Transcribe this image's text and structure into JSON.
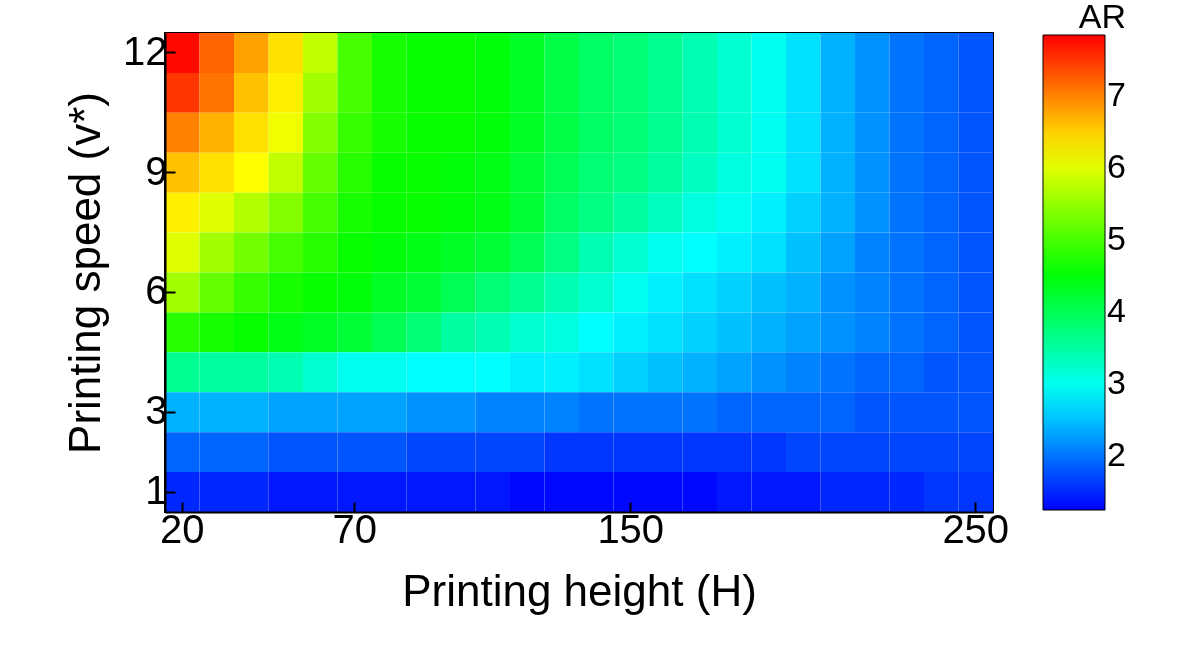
{
  "chart_data": {
    "type": "heatmap",
    "xlabel": "Printing height (H)",
    "ylabel": "Printing speed (v*)",
    "clabel": "AR",
    "categories": [
      "20",
      null,
      null,
      null,
      null,
      "70",
      null,
      null,
      null,
      null,
      null,
      null,
      null,
      "150",
      null,
      null,
      null,
      null,
      null,
      null,
      null,
      null,
      null,
      "250"
    ],
    "y_categories": [
      "12",
      null,
      null,
      "9",
      null,
      null,
      "6",
      null,
      null,
      "3",
      null,
      "1"
    ],
    "cells": [
      [
        7.8,
        7.2,
        6.8,
        6.4,
        5.8,
        5.0,
        4.7,
        4.6,
        4.6,
        4.5,
        4.3,
        4.1,
        3.9,
        3.8,
        3.6,
        3.4,
        3.2,
        3.0,
        2.7,
        2.4,
        2.2,
        2.0,
        1.9,
        1.8
      ],
      [
        7.5,
        7.1,
        6.6,
        6.3,
        5.6,
        5.0,
        4.7,
        4.6,
        4.6,
        4.5,
        4.3,
        4.1,
        3.9,
        3.8,
        3.6,
        3.4,
        3.2,
        3.0,
        2.7,
        2.4,
        2.2,
        2.0,
        1.9,
        1.8
      ],
      [
        7.0,
        6.7,
        6.4,
        6.1,
        5.4,
        4.9,
        4.7,
        4.6,
        4.6,
        4.5,
        4.3,
        4.1,
        3.9,
        3.8,
        3.6,
        3.4,
        3.2,
        3.0,
        2.7,
        2.4,
        2.2,
        2.0,
        1.9,
        1.8
      ],
      [
        6.6,
        6.4,
        6.2,
        5.8,
        5.2,
        4.8,
        4.6,
        4.6,
        4.5,
        4.4,
        4.2,
        4.0,
        3.8,
        3.7,
        3.5,
        3.3,
        3.1,
        3.0,
        2.7,
        2.4,
        2.2,
        2.0,
        1.9,
        1.8
      ],
      [
        6.3,
        6.0,
        5.7,
        5.4,
        5.0,
        4.7,
        4.6,
        4.6,
        4.5,
        4.4,
        4.2,
        3.9,
        3.7,
        3.5,
        3.3,
        3.1,
        3.0,
        2.8,
        2.6,
        2.4,
        2.2,
        2.0,
        1.9,
        1.8
      ],
      [
        6.0,
        5.6,
        5.3,
        5.0,
        4.8,
        4.6,
        4.5,
        4.4,
        4.3,
        4.2,
        4.0,
        3.7,
        3.4,
        3.2,
        3.0,
        2.9,
        2.8,
        2.7,
        2.5,
        2.3,
        2.1,
        2.0,
        1.9,
        1.8
      ],
      [
        5.6,
        5.2,
        4.9,
        4.7,
        4.6,
        4.5,
        4.3,
        4.2,
        4.0,
        3.8,
        3.6,
        3.4,
        3.2,
        3.0,
        2.8,
        2.7,
        2.6,
        2.5,
        2.4,
        2.2,
        2.1,
        2.0,
        1.9,
        1.8
      ],
      [
        4.8,
        4.7,
        4.6,
        4.4,
        4.3,
        4.2,
        4.0,
        3.8,
        3.5,
        3.4,
        3.2,
        3.1,
        2.9,
        2.8,
        2.7,
        2.6,
        2.5,
        2.4,
        2.3,
        2.2,
        2.1,
        2.0,
        1.9,
        1.8
      ],
      [
        3.6,
        3.5,
        3.5,
        3.4,
        3.2,
        3.0,
        3.0,
        2.9,
        2.9,
        2.9,
        2.8,
        2.8,
        2.7,
        2.6,
        2.5,
        2.4,
        2.3,
        2.2,
        2.1,
        2.0,
        1.9,
        1.9,
        1.8,
        1.8
      ],
      [
        2.4,
        2.4,
        2.4,
        2.3,
        2.3,
        2.3,
        2.3,
        2.2,
        2.2,
        2.1,
        2.1,
        2.1,
        2.0,
        2.0,
        2.0,
        2.0,
        1.9,
        1.9,
        1.9,
        1.9,
        1.8,
        1.8,
        1.8,
        1.8
      ],
      [
        1.9,
        1.9,
        1.9,
        1.8,
        1.8,
        1.8,
        1.8,
        1.7,
        1.7,
        1.7,
        1.7,
        1.6,
        1.6,
        1.6,
        1.6,
        1.6,
        1.6,
        1.6,
        1.7,
        1.7,
        1.7,
        1.7,
        1.7,
        1.7
      ],
      [
        1.5,
        1.5,
        1.5,
        1.4,
        1.4,
        1.4,
        1.4,
        1.4,
        1.4,
        1.4,
        1.3,
        1.3,
        1.3,
        1.3,
        1.3,
        1.3,
        1.4,
        1.4,
        1.4,
        1.5,
        1.5,
        1.5,
        1.6,
        1.6
      ]
    ],
    "clim": [
      1.25,
      7.85
    ],
    "cticks": [
      2,
      3,
      4,
      5,
      6,
      7
    ],
    "colors": [
      "#0000ff",
      "#00ffff",
      "#00ff00",
      "#ffff00",
      "#ff0000"
    ]
  }
}
